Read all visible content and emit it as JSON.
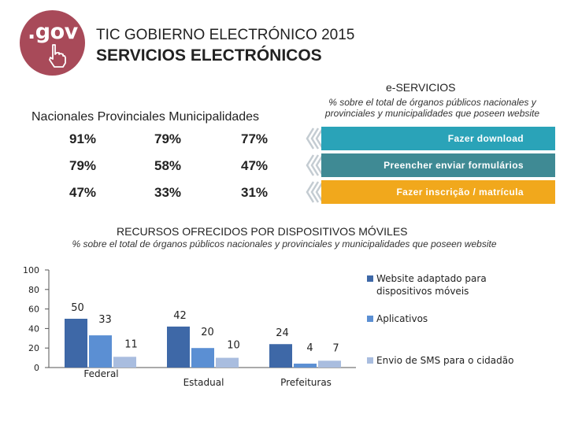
{
  "header": {
    "logo_text": ".gov",
    "title_line1": "TIC GOBIERNO ELECTRÓNICO 2015",
    "title_line2": "SERVICIOS ELECTRÓNICOS"
  },
  "eservices": {
    "title": "e-SERVICIOS",
    "subtitle": "% sobre el total de órganos públicos nacionales y provinciales y municipalidades que poseen website",
    "column_header": "Nacionales Provinciales Municipalidades",
    "colors": {
      "row1": "#2aa3b8",
      "row2": "#3f8a94",
      "row3": "#f1a81c",
      "chevron": "#c4ccd2"
    },
    "rows": [
      {
        "label": "Fazer download",
        "values": [
          "91%",
          "79%",
          "77%"
        ]
      },
      {
        "label": "Preencher enviar formulários",
        "values": [
          "79%",
          "58%",
          "47%"
        ]
      },
      {
        "label": "Fazer inscrição / matrícula",
        "values": [
          "47%",
          "33%",
          "31%"
        ]
      }
    ]
  },
  "resources": {
    "title": "RECURSOS OFRECIDOS POR DISPOSITIVOS MÓVILES",
    "subtitle": "% sobre el total de órganos públicos nacionales y provinciales y municipalidades que poseen website"
  },
  "chart_data": {
    "type": "bar",
    "categories": [
      "Federal",
      "Estadual",
      "Prefeituras"
    ],
    "series": [
      {
        "name": "Website adaptado para dispositivos móveis",
        "values": [
          50,
          42,
          24
        ],
        "color": "#3e68a7"
      },
      {
        "name": "Aplicativos",
        "values": [
          33,
          20,
          4
        ],
        "color": "#5b8fd3"
      },
      {
        "name": "Envio de SMS para o cidadão",
        "values": [
          11,
          10,
          7
        ],
        "color": "#a9bddf"
      }
    ],
    "ylim": [
      0,
      100
    ],
    "yticks": [
      0,
      20,
      40,
      60,
      80,
      100
    ],
    "xlabel": "",
    "ylabel": "",
    "legend": "right"
  }
}
